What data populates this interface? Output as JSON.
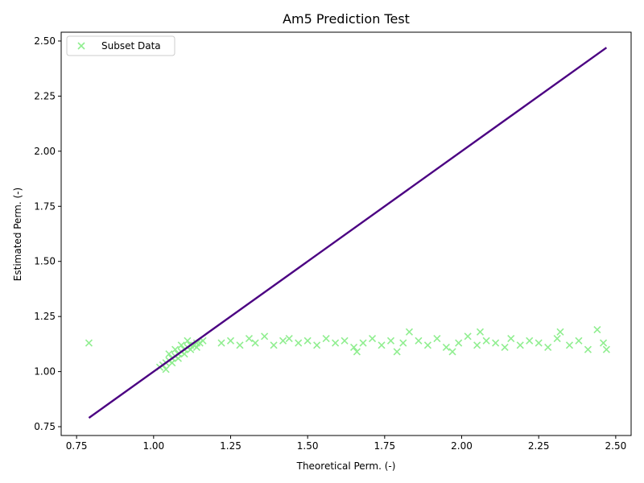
{
  "chart_data": {
    "type": "scatter",
    "title": "Am5 Prediction Test",
    "xlabel": "Theoretical Perm. (-)",
    "ylabel": "Estimated Perm. (-)",
    "xlim": [
      0.7,
      2.55
    ],
    "ylim": [
      0.71,
      2.54
    ],
    "xticks": [
      "0.75",
      "1.00",
      "1.25",
      "1.50",
      "1.75",
      "2.00",
      "2.25",
      "2.50"
    ],
    "yticks": [
      "0.75",
      "1.00",
      "1.25",
      "1.50",
      "1.75",
      "2.00",
      "2.25",
      "2.50"
    ],
    "legend": {
      "position": "top-left",
      "entries": [
        "Subset Data"
      ]
    },
    "grid": false,
    "series": [
      {
        "name": "Subset Data",
        "marker": "x",
        "color": "#90ee90",
        "points": [
          [
            0.79,
            1.13
          ],
          [
            1.02,
            1.02
          ],
          [
            1.03,
            1.03
          ],
          [
            1.04,
            1.04
          ],
          [
            1.05,
            1.05
          ],
          [
            1.06,
            1.06
          ],
          [
            1.07,
            1.07
          ],
          [
            1.08,
            1.08
          ],
          [
            1.09,
            1.09
          ],
          [
            1.1,
            1.1
          ],
          [
            1.11,
            1.11
          ],
          [
            1.12,
            1.12
          ],
          [
            1.13,
            1.12
          ],
          [
            1.14,
            1.13
          ],
          [
            1.15,
            1.13
          ],
          [
            1.16,
            1.14
          ],
          [
            1.04,
            1.01
          ],
          [
            1.06,
            1.04
          ],
          [
            1.08,
            1.06
          ],
          [
            1.1,
            1.08
          ],
          [
            1.12,
            1.1
          ],
          [
            1.14,
            1.11
          ],
          [
            1.05,
            1.08
          ],
          [
            1.07,
            1.1
          ],
          [
            1.09,
            1.12
          ],
          [
            1.11,
            1.14
          ],
          [
            1.22,
            1.13
          ],
          [
            1.25,
            1.14
          ],
          [
            1.28,
            1.12
          ],
          [
            1.31,
            1.15
          ],
          [
            1.33,
            1.13
          ],
          [
            1.36,
            1.16
          ],
          [
            1.39,
            1.12
          ],
          [
            1.42,
            1.14
          ],
          [
            1.44,
            1.15
          ],
          [
            1.47,
            1.13
          ],
          [
            1.5,
            1.14
          ],
          [
            1.53,
            1.12
          ],
          [
            1.56,
            1.15
          ],
          [
            1.59,
            1.13
          ],
          [
            1.62,
            1.14
          ],
          [
            1.65,
            1.11
          ],
          [
            1.66,
            1.09
          ],
          [
            1.68,
            1.13
          ],
          [
            1.71,
            1.15
          ],
          [
            1.74,
            1.12
          ],
          [
            1.77,
            1.14
          ],
          [
            1.79,
            1.09
          ],
          [
            1.81,
            1.13
          ],
          [
            1.83,
            1.18
          ],
          [
            1.86,
            1.14
          ],
          [
            1.89,
            1.12
          ],
          [
            1.92,
            1.15
          ],
          [
            1.95,
            1.11
          ],
          [
            1.97,
            1.09
          ],
          [
            1.99,
            1.13
          ],
          [
            2.02,
            1.16
          ],
          [
            2.05,
            1.12
          ],
          [
            2.06,
            1.18
          ],
          [
            2.08,
            1.14
          ],
          [
            2.11,
            1.13
          ],
          [
            2.14,
            1.11
          ],
          [
            2.16,
            1.15
          ],
          [
            2.19,
            1.12
          ],
          [
            2.22,
            1.14
          ],
          [
            2.25,
            1.13
          ],
          [
            2.28,
            1.11
          ],
          [
            2.31,
            1.15
          ],
          [
            2.32,
            1.18
          ],
          [
            2.35,
            1.12
          ],
          [
            2.38,
            1.14
          ],
          [
            2.41,
            1.1
          ],
          [
            2.44,
            1.19
          ],
          [
            2.46,
            1.13
          ],
          [
            2.47,
            1.1
          ]
        ]
      },
      {
        "marker": "line",
        "color": "#4b0082",
        "points": [
          [
            0.79,
            0.79
          ],
          [
            2.47,
            2.47
          ]
        ]
      }
    ]
  }
}
